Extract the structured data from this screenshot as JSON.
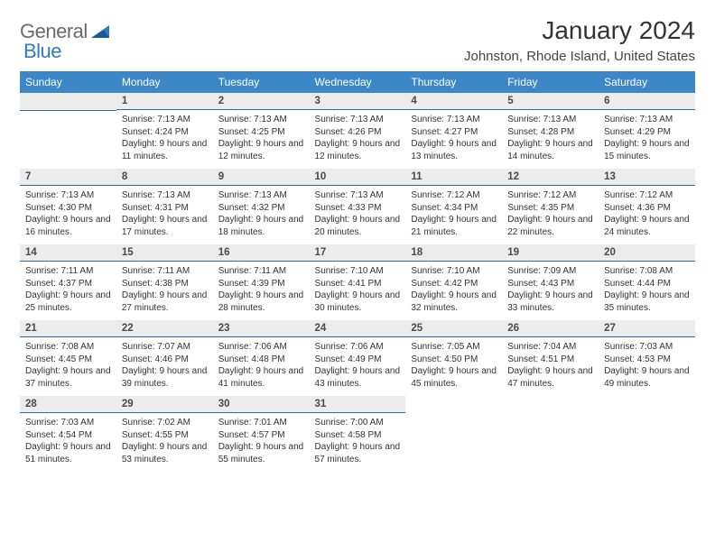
{
  "logo": {
    "part1": "General",
    "part2": "Blue"
  },
  "title": "January 2024",
  "location": "Johnston, Rhode Island, United States",
  "colors": {
    "header_bg": "#3b87c8",
    "header_text": "#ffffff",
    "daynum_bg": "#ececec",
    "daynum_border": "#2f6da8",
    "logo_gray": "#6a6a6a",
    "logo_blue": "#2f7bbf"
  },
  "weekdays": [
    "Sunday",
    "Monday",
    "Tuesday",
    "Wednesday",
    "Thursday",
    "Friday",
    "Saturday"
  ],
  "firstDayOffset": 1,
  "days": [
    {
      "n": 1,
      "sunrise": "7:13 AM",
      "sunset": "4:24 PM",
      "daylight": "9 hours and 11 minutes."
    },
    {
      "n": 2,
      "sunrise": "7:13 AM",
      "sunset": "4:25 PM",
      "daylight": "9 hours and 12 minutes."
    },
    {
      "n": 3,
      "sunrise": "7:13 AM",
      "sunset": "4:26 PM",
      "daylight": "9 hours and 12 minutes."
    },
    {
      "n": 4,
      "sunrise": "7:13 AM",
      "sunset": "4:27 PM",
      "daylight": "9 hours and 13 minutes."
    },
    {
      "n": 5,
      "sunrise": "7:13 AM",
      "sunset": "4:28 PM",
      "daylight": "9 hours and 14 minutes."
    },
    {
      "n": 6,
      "sunrise": "7:13 AM",
      "sunset": "4:29 PM",
      "daylight": "9 hours and 15 minutes."
    },
    {
      "n": 7,
      "sunrise": "7:13 AM",
      "sunset": "4:30 PM",
      "daylight": "9 hours and 16 minutes."
    },
    {
      "n": 8,
      "sunrise": "7:13 AM",
      "sunset": "4:31 PM",
      "daylight": "9 hours and 17 minutes."
    },
    {
      "n": 9,
      "sunrise": "7:13 AM",
      "sunset": "4:32 PM",
      "daylight": "9 hours and 18 minutes."
    },
    {
      "n": 10,
      "sunrise": "7:13 AM",
      "sunset": "4:33 PM",
      "daylight": "9 hours and 20 minutes."
    },
    {
      "n": 11,
      "sunrise": "7:12 AM",
      "sunset": "4:34 PM",
      "daylight": "9 hours and 21 minutes."
    },
    {
      "n": 12,
      "sunrise": "7:12 AM",
      "sunset": "4:35 PM",
      "daylight": "9 hours and 22 minutes."
    },
    {
      "n": 13,
      "sunrise": "7:12 AM",
      "sunset": "4:36 PM",
      "daylight": "9 hours and 24 minutes."
    },
    {
      "n": 14,
      "sunrise": "7:11 AM",
      "sunset": "4:37 PM",
      "daylight": "9 hours and 25 minutes."
    },
    {
      "n": 15,
      "sunrise": "7:11 AM",
      "sunset": "4:38 PM",
      "daylight": "9 hours and 27 minutes."
    },
    {
      "n": 16,
      "sunrise": "7:11 AM",
      "sunset": "4:39 PM",
      "daylight": "9 hours and 28 minutes."
    },
    {
      "n": 17,
      "sunrise": "7:10 AM",
      "sunset": "4:41 PM",
      "daylight": "9 hours and 30 minutes."
    },
    {
      "n": 18,
      "sunrise": "7:10 AM",
      "sunset": "4:42 PM",
      "daylight": "9 hours and 32 minutes."
    },
    {
      "n": 19,
      "sunrise": "7:09 AM",
      "sunset": "4:43 PM",
      "daylight": "9 hours and 33 minutes."
    },
    {
      "n": 20,
      "sunrise": "7:08 AM",
      "sunset": "4:44 PM",
      "daylight": "9 hours and 35 minutes."
    },
    {
      "n": 21,
      "sunrise": "7:08 AM",
      "sunset": "4:45 PM",
      "daylight": "9 hours and 37 minutes."
    },
    {
      "n": 22,
      "sunrise": "7:07 AM",
      "sunset": "4:46 PM",
      "daylight": "9 hours and 39 minutes."
    },
    {
      "n": 23,
      "sunrise": "7:06 AM",
      "sunset": "4:48 PM",
      "daylight": "9 hours and 41 minutes."
    },
    {
      "n": 24,
      "sunrise": "7:06 AM",
      "sunset": "4:49 PM",
      "daylight": "9 hours and 43 minutes."
    },
    {
      "n": 25,
      "sunrise": "7:05 AM",
      "sunset": "4:50 PM",
      "daylight": "9 hours and 45 minutes."
    },
    {
      "n": 26,
      "sunrise": "7:04 AM",
      "sunset": "4:51 PM",
      "daylight": "9 hours and 47 minutes."
    },
    {
      "n": 27,
      "sunrise": "7:03 AM",
      "sunset": "4:53 PM",
      "daylight": "9 hours and 49 minutes."
    },
    {
      "n": 28,
      "sunrise": "7:03 AM",
      "sunset": "4:54 PM",
      "daylight": "9 hours and 51 minutes."
    },
    {
      "n": 29,
      "sunrise": "7:02 AM",
      "sunset": "4:55 PM",
      "daylight": "9 hours and 53 minutes."
    },
    {
      "n": 30,
      "sunrise": "7:01 AM",
      "sunset": "4:57 PM",
      "daylight": "9 hours and 55 minutes."
    },
    {
      "n": 31,
      "sunrise": "7:00 AM",
      "sunset": "4:58 PM",
      "daylight": "9 hours and 57 minutes."
    }
  ],
  "labels": {
    "sunrise": "Sunrise:",
    "sunset": "Sunset:",
    "daylight": "Daylight:"
  }
}
